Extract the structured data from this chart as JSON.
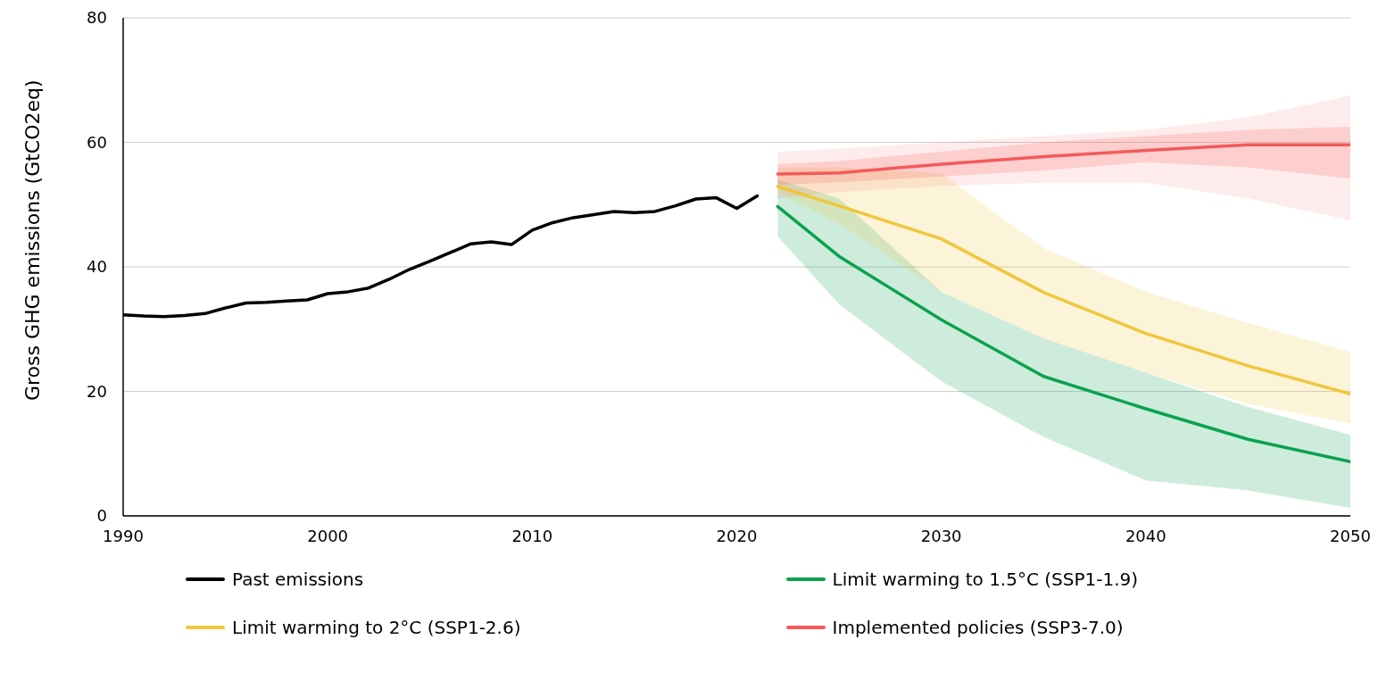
{
  "chart_data": {
    "type": "line",
    "ylabel": "Gross GHG emissions (GtCO2eq)",
    "xlim": [
      1990,
      2050
    ],
    "xticks": [
      1990,
      2000,
      2010,
      2020,
      2030,
      2040,
      2050
    ],
    "ylim": [
      0,
      80
    ],
    "yticks": [
      0,
      20,
      40,
      60,
      80
    ],
    "grid": "y",
    "legend": "bottom",
    "marker": "none",
    "line_style": "solid",
    "series": [
      {
        "name": "Past emissions",
        "color": "#000000",
        "x": [
          1990,
          1991,
          1992,
          1993,
          1994,
          1995,
          1996,
          1997,
          1998,
          1999,
          2000,
          2001,
          2002,
          2003,
          2004,
          2005,
          2006,
          2007,
          2008,
          2009,
          2010,
          2011,
          2012,
          2013,
          2014,
          2015,
          2016,
          2017,
          2018,
          2019,
          2020,
          2021
        ],
        "values": [
          32.3,
          32.1,
          32.0,
          32.2,
          32.5,
          33.4,
          34.2,
          34.3,
          34.5,
          34.7,
          35.7,
          36.0,
          36.6,
          38.0,
          39.6,
          40.9,
          42.3,
          43.7,
          44.0,
          43.6,
          45.9,
          47.1,
          47.9,
          48.4,
          48.9,
          48.7,
          48.9,
          49.8,
          50.9,
          51.1,
          49.4,
          51.4
        ]
      },
      {
        "name": "Limit warming to 1.5°C (SSP1-1.9)",
        "color": "#0aa24f",
        "x": [
          2022,
          2025,
          2030,
          2035,
          2040,
          2045,
          2050
        ],
        "values": [
          49.7,
          41.7,
          31.5,
          22.4,
          17.2,
          12.3,
          8.7
        ],
        "lower": [
          44.9,
          34,
          21.6,
          12.7,
          5.7,
          4.1,
          1.3
        ],
        "upper": [
          54,
          51,
          36,
          28.5,
          23,
          17.5,
          13
        ]
      },
      {
        "name": "Limit warming to 2°C (SSP1-2.6)",
        "color": "#f0c63c",
        "x": [
          2022,
          2025,
          2030,
          2035,
          2040,
          2045,
          2050
        ],
        "values": [
          52.9,
          49.8,
          44.5,
          35.9,
          29.3,
          24.1,
          19.6
        ],
        "lower": [
          52,
          47,
          36,
          28.5,
          23,
          18,
          14.8
        ],
        "upper": [
          56,
          56,
          55,
          43,
          36,
          31,
          26.3
        ]
      },
      {
        "name": "Implemented policies (SSP3-7.0)",
        "color": "#f45a5a",
        "x": [
          2022,
          2025,
          2030,
          2035,
          2040,
          2045,
          2050
        ],
        "values": [
          54.9,
          55.1,
          56.5,
          57.7,
          58.7,
          59.6,
          59.6
        ],
        "lower": [
          53.2,
          53.6,
          54.5,
          55.5,
          56.8,
          56,
          54.2
        ],
        "upper": [
          56.5,
          57,
          58.5,
          60,
          61,
          62,
          62.5
        ]
      },
      {
        "color": "#f45a5a",
        "x": [
          2022,
          2025,
          2030,
          2035,
          2040,
          2045,
          2050
        ],
        "values": [
          null,
          null,
          null,
          null,
          null,
          null,
          null
        ],
        "lower": [
          51,
          52,
          53,
          53.5,
          53.5,
          51,
          47.5
        ],
        "upper": [
          58.5,
          59,
          60,
          61,
          62,
          64,
          67.5
        ]
      }
    ]
  }
}
